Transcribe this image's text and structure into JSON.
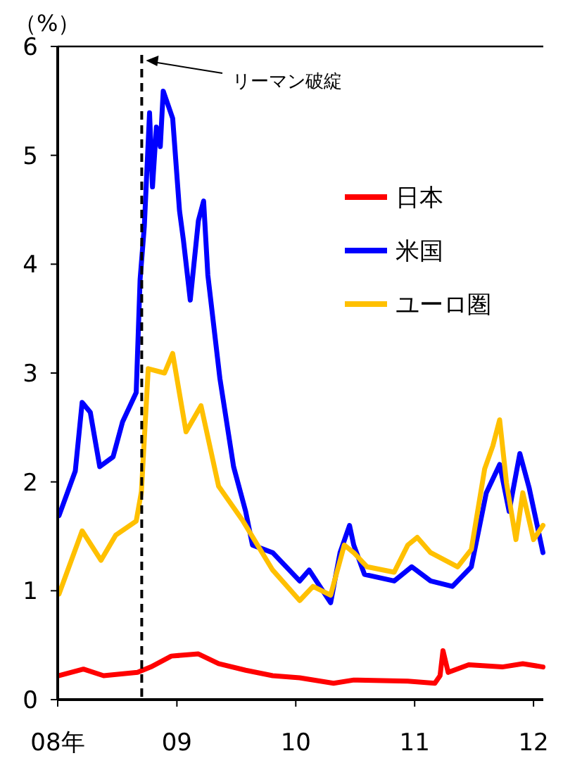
{
  "chart_data": {
    "type": "line",
    "ylabel": "（%）",
    "xlim": [
      "2008-01-01",
      "2012-01-31"
    ],
    "xticks": [
      {
        "value": "2008-01-01",
        "label": "08年"
      },
      {
        "value": "2009-01-01",
        "label": "09"
      },
      {
        "value": "2010-01-01",
        "label": "10"
      },
      {
        "value": "2011-01-01",
        "label": "11"
      },
      {
        "value": "2012-01-01",
        "label": "12"
      }
    ],
    "ylim": [
      0,
      6
    ],
    "yticks": [
      0,
      1,
      2,
      3,
      4,
      5,
      6
    ],
    "grid": false,
    "legend": "right",
    "marker": "none",
    "line_style": "solid",
    "ref_lines": [
      {
        "axis": "x",
        "value": "2008-09-15",
        "label": "リーマン破綻",
        "color": "#000000",
        "line_style": "dashed"
      }
    ],
    "series": [
      {
        "name": "日本",
        "color": "#ff0000",
        "x": [
          "2008-01-05",
          "2008-03-20",
          "2008-05-21",
          "2008-09-02",
          "2008-10-13",
          "2008-12-15",
          "2009-03-08",
          "2009-05-09",
          "2009-07-31",
          "2009-10-22",
          "2010-01-13",
          "2010-04-27",
          "2010-06-28",
          "2010-12-11",
          "2011-03-04",
          "2011-03-20",
          "2011-03-29",
          "2011-04-14",
          "2011-06-16",
          "2011-09-27",
          "2011-11-29",
          "2012-01-30"
        ],
        "values": [
          0.22,
          0.28,
          0.22,
          0.25,
          0.3,
          0.4,
          0.42,
          0.33,
          0.27,
          0.22,
          0.2,
          0.15,
          0.18,
          0.17,
          0.15,
          0.22,
          0.45,
          0.25,
          0.32,
          0.3,
          0.33,
          0.3
        ]
      },
      {
        "name": "米国",
        "color": "#0000ff",
        "x": [
          "2008-01-05",
          "2008-02-24",
          "2008-03-16",
          "2008-04-10",
          "2008-05-09",
          "2008-06-19",
          "2008-07-18",
          "2008-08-29",
          "2008-09-10",
          "2008-09-23",
          "2008-10-09",
          "2008-10-18",
          "2008-10-30",
          "2008-11-11",
          "2008-11-20",
          "2008-12-19",
          "2009-01-09",
          "2009-01-21",
          "2009-02-11",
          "2009-03-08",
          "2009-03-24",
          "2009-04-06",
          "2009-05-13",
          "2009-06-24",
          "2009-07-31",
          "2009-08-21",
          "2009-10-22",
          "2010-01-13",
          "2010-02-11",
          "2010-04-18",
          "2010-05-17",
          "2010-06-15",
          "2010-06-28",
          "2010-07-31",
          "2010-10-30",
          "2010-12-23",
          "2011-02-19",
          "2011-04-27",
          "2011-06-24",
          "2011-08-09",
          "2011-09-19",
          "2011-10-18",
          "2011-11-20",
          "2011-12-19",
          "2012-01-30"
        ],
        "values": [
          1.69,
          2.1,
          2.73,
          2.64,
          2.14,
          2.23,
          2.55,
          2.82,
          3.86,
          4.35,
          5.39,
          4.71,
          5.26,
          5.08,
          5.59,
          5.34,
          4.49,
          4.22,
          3.67,
          4.4,
          4.58,
          3.9,
          2.95,
          2.14,
          1.73,
          1.42,
          1.35,
          1.09,
          1.19,
          0.89,
          1.35,
          1.6,
          1.42,
          1.15,
          1.09,
          1.22,
          1.09,
          1.04,
          1.22,
          1.9,
          2.16,
          1.73,
          2.26,
          1.94,
          1.35
        ]
      },
      {
        "name": "ユーロ圏",
        "color": "#ffc000",
        "x": [
          "2008-01-05",
          "2008-03-16",
          "2008-05-13",
          "2008-06-27",
          "2008-08-29",
          "2008-09-14",
          "2008-10-05",
          "2008-11-24",
          "2008-12-19",
          "2009-01-29",
          "2009-03-16",
          "2009-05-09",
          "2009-07-23",
          "2009-10-22",
          "2010-01-13",
          "2010-02-23",
          "2010-04-18",
          "2010-05-30",
          "2010-06-28",
          "2010-08-08",
          "2010-10-30",
          "2010-12-11",
          "2011-01-09",
          "2011-02-19",
          "2011-05-13",
          "2011-06-24",
          "2011-08-04",
          "2011-08-29",
          "2011-09-19",
          "2011-10-10",
          "2011-11-08",
          "2011-11-29",
          "2012-01-01",
          "2012-01-30"
        ],
        "values": [
          0.97,
          1.55,
          1.28,
          1.51,
          1.64,
          1.91,
          3.04,
          3.0,
          3.18,
          2.46,
          2.7,
          1.96,
          1.64,
          1.19,
          0.91,
          1.04,
          0.96,
          1.42,
          1.35,
          1.22,
          1.17,
          1.42,
          1.49,
          1.35,
          1.22,
          1.38,
          2.12,
          2.33,
          2.57,
          1.99,
          1.47,
          1.9,
          1.47,
          1.6
        ]
      }
    ]
  }
}
